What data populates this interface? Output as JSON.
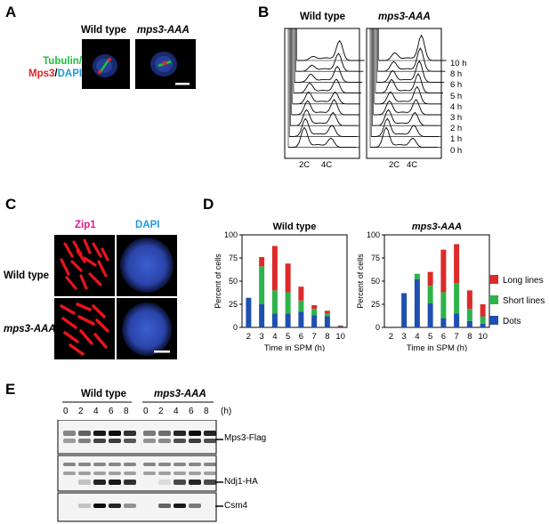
{
  "colors": {
    "tubulin": "#19c23c",
    "mps3": "#e0242a",
    "dapi": "#1e9be0",
    "zip1_text": "#e0198c",
    "long_lines": "#dd2a2a",
    "short_lines": "#2db34a",
    "dots": "#1f4fb0"
  },
  "panel_a": {
    "label": "A",
    "wt_title": "Wild type",
    "mut_title": "mps3-AAA",
    "stain_tubulin": "Tubulin/",
    "stain_mps3": "Mps3",
    "stain_slash": "/",
    "stain_dapi": "DAPI"
  },
  "panel_b": {
    "label": "B",
    "wt_title": "Wild type",
    "mut_title": "mps3-AAA",
    "timepoints": [
      "10 h",
      "8 h",
      "6 h",
      "5 h",
      "4 h",
      "3 h",
      "2 h",
      "1 h",
      "0 h"
    ],
    "x_2c": "2C",
    "x_4c": "4C"
  },
  "panel_c": {
    "label": "C",
    "col_zip1": "Zip1",
    "col_dapi": "DAPI",
    "row_wt": "Wild type",
    "row_mut": "mps3-AAA"
  },
  "panel_d": {
    "label": "D",
    "legend": [
      "Long lines",
      "Short lines",
      "Dots"
    ]
  },
  "chart_data": [
    {
      "type": "bar",
      "stacked": true,
      "title": "Wild type",
      "xlabel": "Time in SPM (h)",
      "ylabel": "Percent of cells",
      "categories": [
        "2",
        "3",
        "4",
        "5",
        "6",
        "7",
        "8",
        "10"
      ],
      "ylim": [
        0,
        100
      ],
      "yticks": [
        0,
        25,
        50,
        75,
        100
      ],
      "legend_placement": "right",
      "series": [
        {
          "name": "Dots",
          "color": "#1f4fb0",
          "values": [
            32,
            25,
            15,
            15,
            17,
            13,
            12,
            1
          ]
        },
        {
          "name": "Short lines",
          "color": "#2db34a",
          "values": [
            0,
            41,
            25,
            23,
            12,
            7,
            3,
            0
          ]
        },
        {
          "name": "Long lines",
          "color": "#dd2a2a",
          "values": [
            0,
            10,
            48,
            31,
            15,
            4,
            3,
            1
          ]
        }
      ]
    },
    {
      "type": "bar",
      "stacked": true,
      "title": "mps3-AAA",
      "xlabel": "Time in SPM (h)",
      "ylabel": "Percent of cells",
      "categories": [
        "2",
        "3",
        "4",
        "5",
        "6",
        "7",
        "8",
        "10"
      ],
      "ylim": [
        0,
        100
      ],
      "yticks": [
        0,
        25,
        50,
        75,
        100
      ],
      "legend_placement": "right",
      "series": [
        {
          "name": "Dots",
          "color": "#1f4fb0",
          "values": [
            0,
            37,
            52,
            26,
            10,
            15,
            7,
            4
          ]
        },
        {
          "name": "Short lines",
          "color": "#2db34a",
          "values": [
            0,
            0,
            6,
            19,
            28,
            33,
            13,
            8
          ]
        },
        {
          "name": "Long lines",
          "color": "#dd2a2a",
          "values": [
            0,
            0,
            0,
            15,
            46,
            42,
            20,
            13
          ]
        }
      ]
    }
  ],
  "panel_e": {
    "label": "E",
    "wt_title": "Wild type",
    "mut_title": "mps3-AAA",
    "lanes_wt": [
      "0",
      "2",
      "4",
      "6",
      "8"
    ],
    "lanes_mut": [
      "0",
      "2",
      "4",
      "6",
      "8"
    ],
    "unit": "(h)",
    "bands": [
      "Mps3-Flag",
      "Ndj1-HA",
      "Csm4"
    ]
  }
}
